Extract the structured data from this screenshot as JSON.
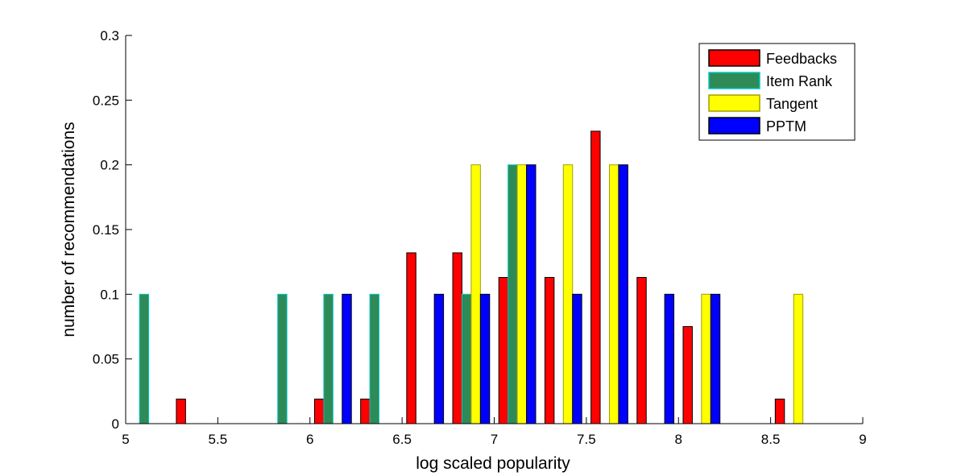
{
  "chart_data": {
    "type": "bar",
    "title": "",
    "xlabel": "log scaled popularity",
    "ylabel": "number of recommendations",
    "xlim": [
      5,
      9
    ],
    "ylim": [
      0,
      0.3
    ],
    "xticks": [
      "5",
      "5.5",
      "6",
      "6.5",
      "7",
      "7.5",
      "8",
      "8.5",
      "9"
    ],
    "yticks": [
      "0",
      "0.05",
      "0.1",
      "0.15",
      "0.2",
      "0.25",
      "0.3"
    ],
    "grid": false,
    "legend_position": "top-right",
    "bin_centers": [
      5.125,
      5.375,
      5.625,
      5.875,
      6.125,
      6.375,
      6.625,
      6.875,
      7.125,
      7.375,
      7.625,
      7.875,
      8.125,
      8.375,
      8.625,
      8.875
    ],
    "series": [
      {
        "name": "Feedbacks",
        "color": "#ff0000",
        "edge": "#000000",
        "values": [
          0,
          0.019,
          0,
          0,
          0.019,
          0.019,
          0.132,
          0.132,
          0.113,
          0.113,
          0.226,
          0.113,
          0.075,
          0,
          0.019,
          0
        ]
      },
      {
        "name": "Item Rank",
        "color": "#2e8b57",
        "edge": "#00c8c8",
        "values": [
          0.1,
          0,
          0,
          0.1,
          0.1,
          0.1,
          0,
          0.1,
          0.2,
          0,
          0,
          0,
          0,
          0,
          0,
          0
        ]
      },
      {
        "name": "Tangent",
        "color": "#ffff00",
        "edge": "#a0a000",
        "values": [
          0,
          0,
          0,
          0,
          0,
          0,
          0,
          0.2,
          0.2,
          0.2,
          0.2,
          0,
          0.1,
          0,
          0.1,
          0
        ]
      },
      {
        "name": "PPTM",
        "color": "#0000ff",
        "edge": "#000000",
        "values": [
          0,
          0,
          0,
          0,
          0.1,
          0,
          0.1,
          0.1,
          0.2,
          0.1,
          0.2,
          0.1,
          0.1,
          0,
          0,
          0
        ]
      }
    ]
  }
}
